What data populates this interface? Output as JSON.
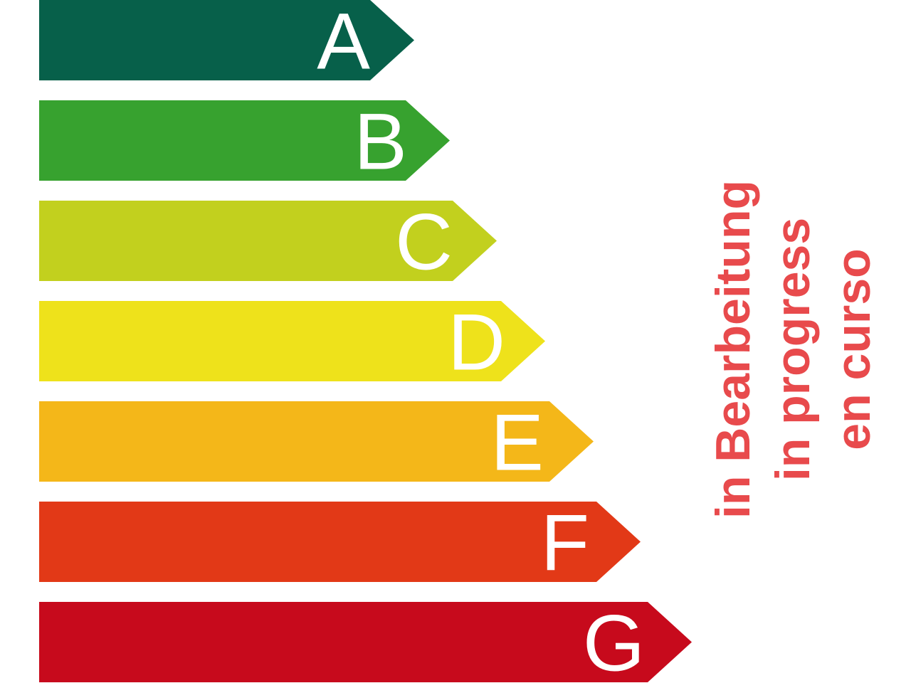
{
  "classes": [
    {
      "letter": "A",
      "color": "#07604a"
    },
    {
      "letter": "B",
      "color": "#37a22f"
    },
    {
      "letter": "C",
      "color": "#c2d01e"
    },
    {
      "letter": "D",
      "color": "#eee21b"
    },
    {
      "letter": "E",
      "color": "#f4b719"
    },
    {
      "letter": "F",
      "color": "#e23917"
    },
    {
      "letter": "G",
      "color": "#c70a1c"
    }
  ],
  "status": {
    "color": "#e84a4c",
    "lines": [
      "in Bearbeitung",
      "in progress",
      "en curso"
    ]
  }
}
